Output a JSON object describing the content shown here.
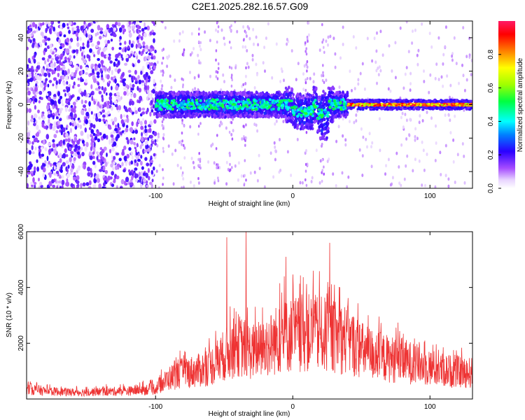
{
  "title": "C2E1.2025.282.16.57.G09",
  "chart_data": [
    {
      "type": "heatmap",
      "xlabel": "Height of straight line (km)",
      "ylabel": "Frequency (Hz)",
      "xlim": [
        -194,
        131
      ],
      "ylim": [
        -50,
        50
      ],
      "xticks": [
        -100,
        0,
        100
      ],
      "xtick_labels": [
        "-100",
        "0",
        "100"
      ],
      "yticks": [
        -40,
        -20,
        0,
        20,
        40
      ],
      "ytick_labels": [
        "-40",
        "-20",
        "0",
        "20",
        "40"
      ],
      "colorbar": {
        "label": "Normalized spectral amplitude",
        "range": [
          0,
          1
        ],
        "ticks": [
          0.0,
          0.2,
          0.4,
          0.6,
          0.8
        ],
        "tick_labels": [
          "0.0",
          "0.2",
          "0.4",
          "0.6",
          "0.8"
        ]
      },
      "regions": [
        {
          "x_range": [
            -194,
            -100
          ],
          "freq_range": [
            -50,
            50
          ],
          "amplitude_range": [
            0.03,
            0.22
          ]
        },
        {
          "x_range": [
            -100,
            40
          ],
          "freq_range": [
            -12,
            8
          ],
          "amplitude_range": [
            0.15,
            0.55
          ]
        },
        {
          "x_range": [
            40,
            131
          ],
          "freq_range": [
            -2,
            2
          ],
          "amplitude_range": [
            0.6,
            1.0
          ]
        }
      ],
      "grid": false
    },
    {
      "type": "line",
      "xlabel": "Height of straight line (km)",
      "ylabel": "SNR (10 * v/v)",
      "xlim": [
        -194,
        131
      ],
      "ylim": [
        0,
        6000
      ],
      "xticks": [
        -100,
        0,
        100
      ],
      "xtick_labels": [
        "-100",
        "0",
        "100"
      ],
      "yticks": [
        2000,
        4000,
        6000
      ],
      "ytick_labels": [
        "2000",
        "4000",
        "6000"
      ],
      "color": "#ee3333",
      "envelope": {
        "x": [
          -194,
          -180,
          -160,
          -140,
          -120,
          -100,
          -90,
          -80,
          -70,
          -60,
          -50,
          -40,
          -30,
          -20,
          -10,
          0,
          10,
          20,
          30,
          40,
          50,
          60,
          70,
          80,
          90,
          100,
          110,
          120,
          131
        ],
        "y": [
          600,
          450,
          380,
          420,
          450,
          600,
          1200,
          1500,
          1600,
          1850,
          2500,
          3100,
          2700,
          2900,
          3500,
          3700,
          3800,
          3700,
          3600,
          3400,
          2800,
          2500,
          2300,
          2200,
          2000,
          1800,
          1650,
          1550,
          1500
        ]
      },
      "peaks": [
        {
          "x": -48,
          "y": 5800
        },
        {
          "x": -34,
          "y": 6000
        },
        {
          "x": -5,
          "y": 5100
        },
        {
          "x": 27,
          "y": 5600
        },
        {
          "x": 15,
          "y": 4600
        }
      ],
      "grid": false
    }
  ]
}
